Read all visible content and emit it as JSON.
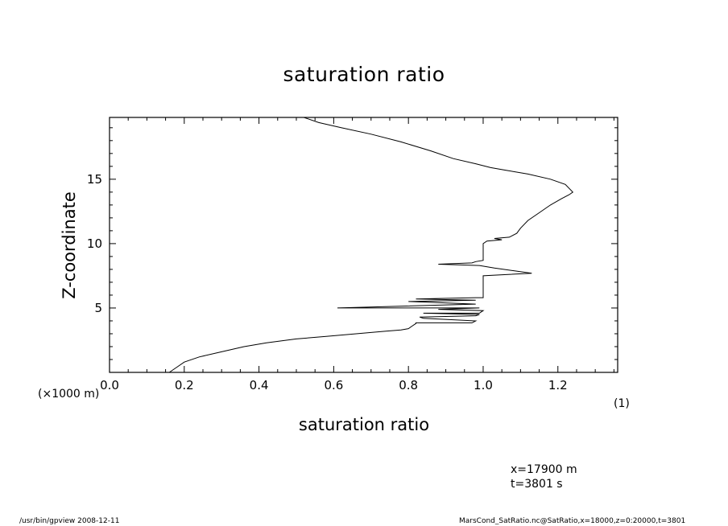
{
  "chart_data": {
    "type": "line",
    "title": "saturation ratio",
    "xlabel": "saturation ratio",
    "ylabel": "Z-coordinate",
    "y_unit_note": "(×1000 m)",
    "x_unit_note": "(1)",
    "xlim": [
      0.0,
      1.36
    ],
    "ylim": [
      0.0,
      19.8
    ],
    "x_ticks": [
      "0.0",
      "0.2",
      "0.4",
      "0.6",
      "0.8",
      "1.0",
      "1.2"
    ],
    "y_ticks": [
      "5",
      "10",
      "15"
    ],
    "grid": false,
    "series": [
      {
        "x": [
          0.16,
          0.18,
          0.2,
          0.24,
          0.3,
          0.36,
          0.42,
          0.5,
          0.58,
          0.66,
          0.74,
          0.78,
          0.8,
          0.81,
          0.82,
          0.82,
          0.97,
          0.98,
          0.84,
          0.83,
          0.98,
          0.99,
          0.84,
          0.99,
          1.0,
          0.88,
          0.99,
          0.8,
          0.61,
          0.98,
          0.8,
          0.98,
          0.82,
          0.98,
          1.0,
          1.0,
          1.13,
          1.08,
          1.03,
          0.99,
          0.88,
          0.97,
          0.98,
          1.0,
          1.0,
          1.0,
          1.01,
          1.05,
          1.03,
          1.07,
          1.09,
          1.1,
          1.12,
          1.15,
          1.18,
          1.21,
          1.23,
          1.24,
          1.22,
          1.18,
          1.12,
          1.06,
          1.02,
          0.98,
          0.92,
          0.86,
          0.78,
          0.7,
          0.62,
          0.56,
          0.52
        ],
        "y": [
          0.0,
          0.4,
          0.8,
          1.2,
          1.6,
          2.0,
          2.3,
          2.6,
          2.8,
          3.0,
          3.2,
          3.3,
          3.4,
          3.6,
          3.8,
          3.85,
          3.85,
          4.0,
          4.2,
          4.3,
          4.4,
          4.5,
          4.6,
          4.6,
          4.8,
          4.9,
          5.0,
          5.0,
          5.0,
          5.3,
          5.5,
          5.6,
          5.7,
          5.8,
          5.8,
          7.5,
          7.7,
          7.9,
          8.1,
          8.3,
          8.4,
          8.5,
          8.6,
          8.7,
          9.3,
          10.0,
          10.2,
          10.3,
          10.4,
          10.5,
          10.8,
          11.2,
          11.8,
          12.4,
          13.0,
          13.5,
          13.8,
          14.0,
          14.6,
          15.0,
          15.4,
          15.7,
          15.9,
          16.2,
          16.6,
          17.2,
          17.9,
          18.5,
          19.0,
          19.4,
          19.8
        ]
      }
    ]
  },
  "labels": {
    "title": "saturation ratio",
    "xlabel": "saturation ratio",
    "ylabel": "Z-coordinate",
    "y_unit_note": "(×1000 m)",
    "x_unit_note": "(1)",
    "info_x": "x=17900  m",
    "info_t": "t=3801  s",
    "footer_left": "/usr/bin/gpview    2008-12-11",
    "footer_right": "MarsCond_SatRatio.nc@SatRatio,x=18000,z=0:20000,t=3801"
  }
}
